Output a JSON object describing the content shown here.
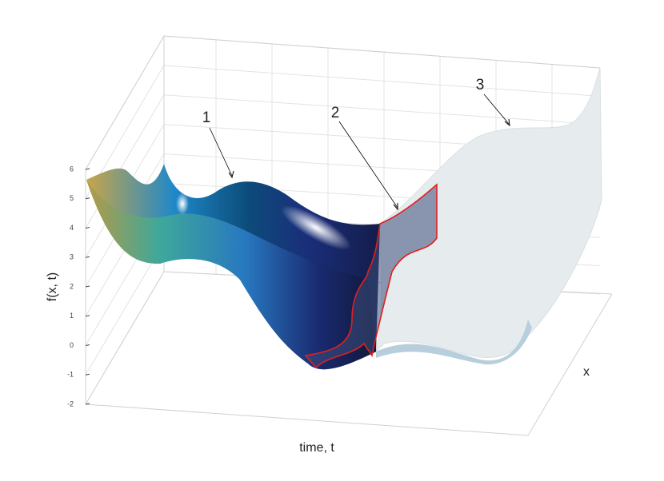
{
  "chart_data": {
    "type": "surface3d",
    "xlabel": "time, t",
    "ylabel": "x",
    "zlabel": "f(x, t)",
    "zlim": [
      -2,
      6
    ],
    "zticks": [
      -2,
      -1,
      0,
      1,
      2,
      3,
      4,
      5,
      6
    ],
    "grid": true,
    "annotations": [
      "1",
      "2",
      "3"
    ]
  }
}
